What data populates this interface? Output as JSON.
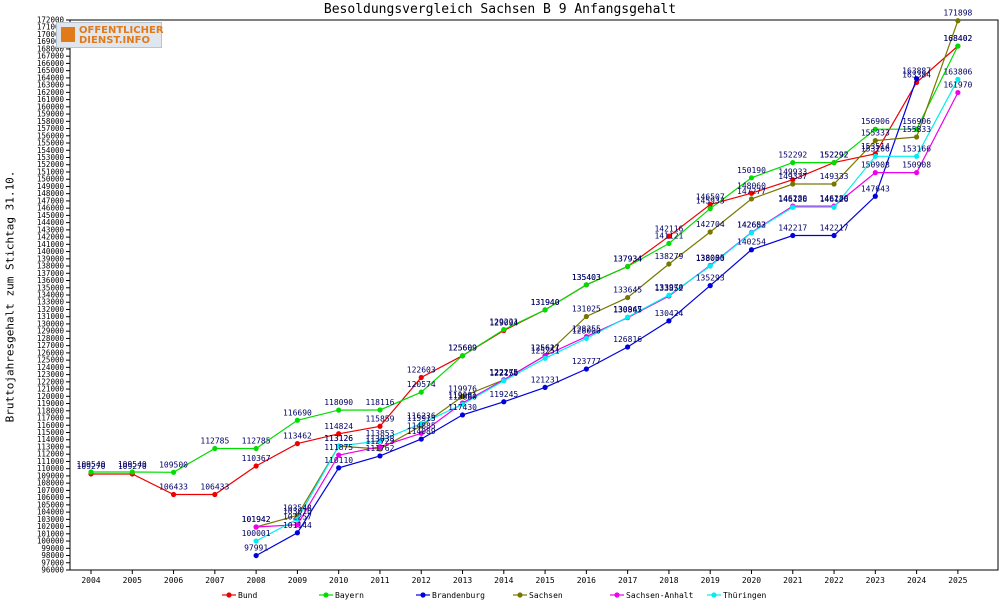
{
  "chart_data": {
    "type": "line",
    "title": "Besoldungsvergleich Sachsen B 9 Anfangsgehalt",
    "ylabel": "Bruttojahresgehalt zum Stichtag 31.10.",
    "xlabel": "",
    "ylim": [
      96000,
      172000
    ],
    "y_tick_step": 1000,
    "grid": false,
    "legend": "bottom",
    "categories": [
      "2004",
      "2005",
      "2006",
      "2007",
      "2008",
      "2009",
      "2010",
      "2011",
      "2012",
      "2013",
      "2014",
      "2015",
      "2016",
      "2017",
      "2018",
      "2019",
      "2020",
      "2021",
      "2022",
      "2023",
      "2024",
      "2025"
    ],
    "series": [
      {
        "name": "Bund",
        "color": "#ee0000",
        "values": [
          109270,
          109270,
          106433,
          106433,
          110367,
          113462,
          114824,
          115859,
          122603,
          125609,
          129094,
          131940,
          135403,
          137934,
          142116,
          146507,
          148060,
          149933,
          152292,
          153514,
          163384,
          168402
        ]
      },
      {
        "name": "Bayern",
        "color": "#00dd00",
        "values": [
          109540,
          109540,
          109500,
          112785,
          112785,
          116690,
          118090,
          118116,
          120574,
          125609,
          129221,
          131940,
          135403,
          137934,
          141121,
          145933,
          150190,
          152292,
          152292,
          156906,
          156906,
          168402
        ]
      },
      {
        "name": "Brandenburg",
        "color": "#0000dd",
        "values": [
          null,
          null,
          null,
          null,
          97991,
          101144,
          110110,
          111762,
          114089,
          117430,
          119245,
          121231,
          123777,
          126816,
          130424,
          135293,
          140254,
          142217,
          142217,
          147643,
          163887,
          null
        ]
      },
      {
        "name": "Sachsen",
        "color": "#777700",
        "values": [
          null,
          null,
          null,
          null,
          101942,
          103548,
          113126,
          112723,
          115915,
          119976,
          122275,
          125617,
          131025,
          133645,
          138279,
          142704,
          147277,
          149337,
          149333,
          155333,
          155833,
          171898
        ]
      },
      {
        "name": "Sachsen-Anhalt",
        "color": "#ee00ee",
        "values": [
          null,
          null,
          null,
          null,
          101942,
          102257,
          111875,
          113038,
          114885,
          119081,
          122275,
          125621,
          128255,
          130865,
          133852,
          138085,
          142652,
          146280,
          146280,
          150908,
          150908,
          161970
        ]
      },
      {
        "name": "Thüringen",
        "color": "#00eeee",
        "values": [
          null,
          null,
          null,
          null,
          100001,
          103016,
          113126,
          113853,
          116236,
          118880,
          122150,
          125251,
          128000,
          130947,
          133970,
          138000,
          142603,
          146126,
          146126,
          153166,
          153166,
          163806
        ]
      }
    ]
  }
}
